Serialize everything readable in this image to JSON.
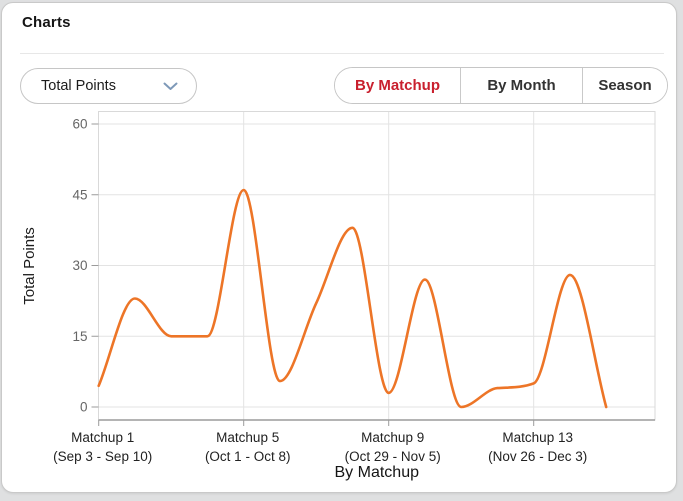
{
  "header": {
    "title": "Charts"
  },
  "controls": {
    "metric_dropdown": {
      "value": "Total Points",
      "chevron_icon": "chevron-down",
      "chevron_color": "#7e99b8"
    },
    "tabs": [
      {
        "label": "By Matchup",
        "active": true
      },
      {
        "label": "By Month",
        "active": false
      },
      {
        "label": "Season",
        "active": false
      }
    ],
    "active_tab_color": "#c9202e"
  },
  "chart_data": {
    "type": "line",
    "title": "",
    "series_name": "Total Points",
    "xlabel": "By Matchup",
    "ylabel": "Total Points",
    "x": [
      1,
      2,
      3,
      4,
      5,
      6,
      7,
      8,
      9,
      10,
      11,
      12,
      13,
      14,
      15
    ],
    "values": [
      4.5,
      23,
      15,
      15,
      46,
      5.5,
      22,
      38,
      3,
      27,
      0,
      4,
      5,
      28,
      0
    ],
    "x_ticks": [
      {
        "matchup": 1,
        "lines": [
          "Matchup 1",
          "(Sep 3 - Sep 10)"
        ]
      },
      {
        "matchup": 5,
        "lines": [
          "Matchup 5",
          "(Oct 1 - Oct 8)"
        ]
      },
      {
        "matchup": 9,
        "lines": [
          "Matchup 9",
          "(Oct 29 - Nov 5)"
        ]
      },
      {
        "matchup": 13,
        "lines": [
          "Matchup 13",
          "(Nov 26 - Dec 3)"
        ]
      }
    ],
    "y_ticks": [
      0,
      15,
      30,
      45,
      60
    ],
    "ylim": [
      0,
      60
    ],
    "grid": true,
    "legend": "none",
    "line_color": "#ed7527",
    "smoothing": "monotone-spline"
  }
}
